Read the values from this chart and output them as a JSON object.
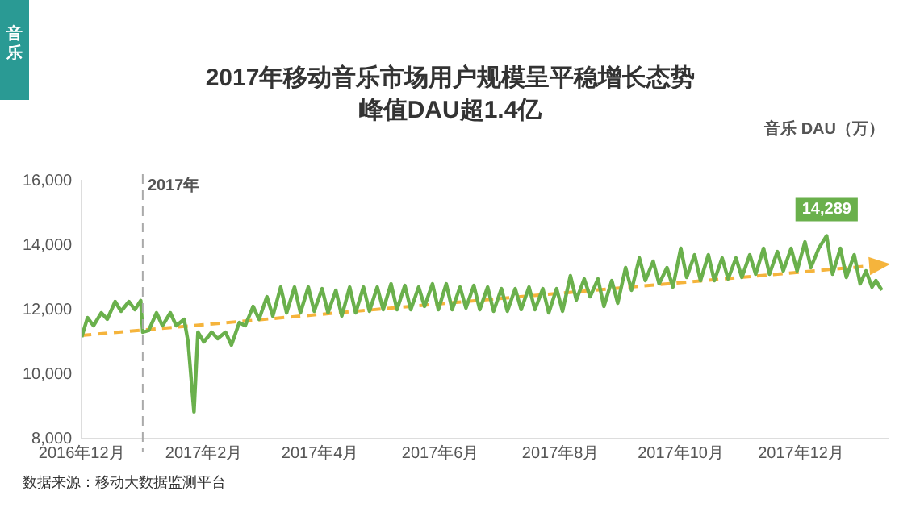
{
  "chart_data": {
    "type": "line",
    "title": "2017年移动音乐市场用户规模呈平稳增长态势",
    "subtitle": "峰值DAU超1.4亿",
    "ylabel": "音乐 DAU（万）",
    "annotations": [
      "音乐",
      {
        "text": "14,289",
        "x": "2017-12-14",
        "y": 14289
      },
      "数据来源：移动大数据监测平台"
    ],
    "xlim": [
      "2016-12-01",
      "2018-01-14"
    ],
    "xticks": [
      {
        "value": "2016-12-01",
        "label": "2016年12月"
      },
      {
        "value": "2017-02-01",
        "label": "2017年2月"
      },
      {
        "value": "2017-04-01",
        "label": "2017年4月"
      },
      {
        "value": "2017-06-01",
        "label": "2017年6月"
      },
      {
        "value": "2017-08-01",
        "label": "2017年8月"
      },
      {
        "value": "2017-10-01",
        "label": "2017年10月"
      },
      {
        "value": "2017-12-01",
        "label": "2017年12月"
      }
    ],
    "ylim": [
      8000,
      16000
    ],
    "yticks": [
      {
        "value": 8000,
        "label": "8,000"
      },
      {
        "value": 10000,
        "label": "10,000"
      },
      {
        "value": 12000,
        "label": "12,000"
      },
      {
        "value": 14000,
        "label": "14,000"
      },
      {
        "value": 16000,
        "label": "16,000"
      }
    ],
    "grid": false,
    "legend": false,
    "ref_lines": [
      {
        "axis": "x",
        "value": "2017-01-01",
        "label": "2017年",
        "color": "#aaaaaa",
        "line_style": "dashed"
      }
    ],
    "series": [
      {
        "color": "#6ab04c",
        "line_style": "solid",
        "x": [
          "2016-12-01",
          "2016-12-04",
          "2016-12-07",
          "2016-12-11",
          "2016-12-14",
          "2016-12-18",
          "2016-12-21",
          "2016-12-25",
          "2016-12-28",
          "2016-12-31",
          "2017-01-01",
          "2017-01-04",
          "2017-01-08",
          "2017-01-11",
          "2017-01-15",
          "2017-01-18",
          "2017-01-22",
          "2017-01-24",
          "2017-01-27",
          "2017-01-29",
          "2017-02-01",
          "2017-02-05",
          "2017-02-08",
          "2017-02-12",
          "2017-02-15",
          "2017-02-19",
          "2017-02-22",
          "2017-02-26",
          "2017-03-01",
          "2017-03-05",
          "2017-03-08",
          "2017-03-12",
          "2017-03-15",
          "2017-03-19",
          "2017-03-22",
          "2017-03-26",
          "2017-03-29",
          "2017-04-02",
          "2017-04-05",
          "2017-04-09",
          "2017-04-12",
          "2017-04-16",
          "2017-04-19",
          "2017-04-23",
          "2017-04-26",
          "2017-04-30",
          "2017-05-03",
          "2017-05-07",
          "2017-05-10",
          "2017-05-14",
          "2017-05-17",
          "2017-05-21",
          "2017-05-24",
          "2017-05-28",
          "2017-05-31",
          "2017-06-04",
          "2017-06-07",
          "2017-06-11",
          "2017-06-14",
          "2017-06-18",
          "2017-06-21",
          "2017-06-25",
          "2017-06-28",
          "2017-07-02",
          "2017-07-05",
          "2017-07-09",
          "2017-07-12",
          "2017-07-16",
          "2017-07-19",
          "2017-07-23",
          "2017-07-26",
          "2017-07-30",
          "2017-08-02",
          "2017-08-06",
          "2017-08-09",
          "2017-08-13",
          "2017-08-16",
          "2017-08-20",
          "2017-08-23",
          "2017-08-27",
          "2017-08-30",
          "2017-09-03",
          "2017-09-06",
          "2017-09-10",
          "2017-09-13",
          "2017-09-17",
          "2017-09-20",
          "2017-09-24",
          "2017-09-27",
          "2017-10-01",
          "2017-10-04",
          "2017-10-08",
          "2017-10-11",
          "2017-10-15",
          "2017-10-18",
          "2017-10-22",
          "2017-10-25",
          "2017-10-29",
          "2017-11-01",
          "2017-11-05",
          "2017-11-08",
          "2017-11-12",
          "2017-11-15",
          "2017-11-19",
          "2017-11-22",
          "2017-11-26",
          "2017-11-29",
          "2017-12-03",
          "2017-12-06",
          "2017-12-10",
          "2017-12-14",
          "2017-12-17",
          "2017-12-21",
          "2017-12-24",
          "2017-12-28",
          "2017-12-31",
          "2018-01-03",
          "2018-01-06",
          "2018-01-08",
          "2018-01-11"
        ],
        "values": [
          11150,
          11750,
          11500,
          11900,
          11700,
          12250,
          11950,
          12250,
          12000,
          12280,
          11300,
          11350,
          11900,
          11500,
          11900,
          11500,
          11700,
          11000,
          8830,
          11300,
          11000,
          11300,
          11100,
          11300,
          10900,
          11600,
          11500,
          12100,
          11700,
          12400,
          11800,
          12700,
          11900,
          12700,
          11900,
          12700,
          11950,
          12650,
          11900,
          12600,
          11800,
          12700,
          11900,
          12700,
          11950,
          12700,
          12000,
          12800,
          12000,
          12750,
          12000,
          12700,
          12100,
          12800,
          12000,
          12800,
          12000,
          12700,
          12050,
          12750,
          12000,
          12700,
          11950,
          12650,
          11950,
          12650,
          12000,
          12700,
          12000,
          12650,
          11900,
          12650,
          11950,
          13050,
          12300,
          12950,
          12400,
          12950,
          12100,
          12900,
          12200,
          13300,
          12600,
          13600,
          12900,
          13500,
          12800,
          13300,
          12700,
          13900,
          13000,
          13700,
          12900,
          13700,
          12900,
          13600,
          12950,
          13600,
          13000,
          13700,
          13100,
          13900,
          13100,
          13800,
          13200,
          13900,
          13200,
          14100,
          13300,
          13900,
          14289,
          13100,
          13900,
          13000,
          13700,
          12800,
          13200,
          12700,
          12900,
          12600
        ]
      },
      {
        "color": "#f5b43c",
        "line_style": "dashed",
        "x": [
          "2016-12-01",
          "2018-01-08"
        ],
        "values": [
          11200,
          13370
        ]
      }
    ]
  }
}
